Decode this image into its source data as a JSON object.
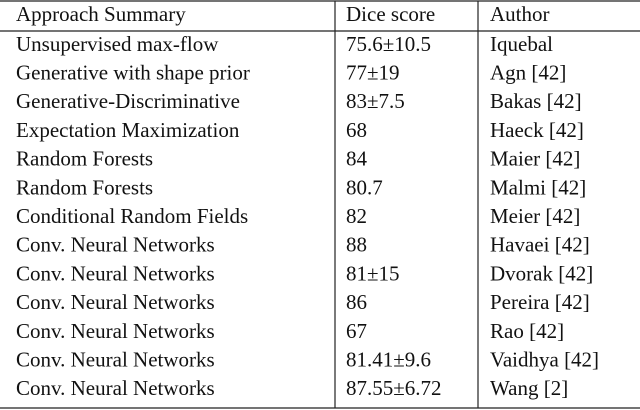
{
  "table": {
    "header": [
      "Approach Summary",
      "Dice score",
      "Author"
    ],
    "rows": [
      [
        "Unsupervised max-flow",
        "75.6±10.5",
        "Iquebal"
      ],
      [
        "Generative with shape prior",
        "77±19",
        "Agn [42]"
      ],
      [
        "Generative-Discriminative",
        "83±7.5",
        "Bakas [42]"
      ],
      [
        "Expectation Maximization",
        "68",
        "Haeck [42]"
      ],
      [
        "Random Forests",
        "84",
        "Maier [42]"
      ],
      [
        "Random Forests",
        "80.7",
        "Malmi [42]"
      ],
      [
        "Conditional Random Fields",
        "82",
        "Meier [42]"
      ],
      [
        "Conv. Neural Networks",
        "88",
        "Havaei [42]"
      ],
      [
        "Conv. Neural Networks",
        "81±15",
        "Dvorak [42]"
      ],
      [
        "Conv. Neural Networks",
        "86",
        "Pereira [42]"
      ],
      [
        "Conv. Neural Networks",
        "67",
        "Rao [42]"
      ],
      [
        "Conv. Neural Networks",
        "81.41±9.6",
        "Vaidhya [42]"
      ],
      [
        "Conv. Neural Networks",
        "87.55±6.72",
        "Wang [2]"
      ]
    ]
  }
}
